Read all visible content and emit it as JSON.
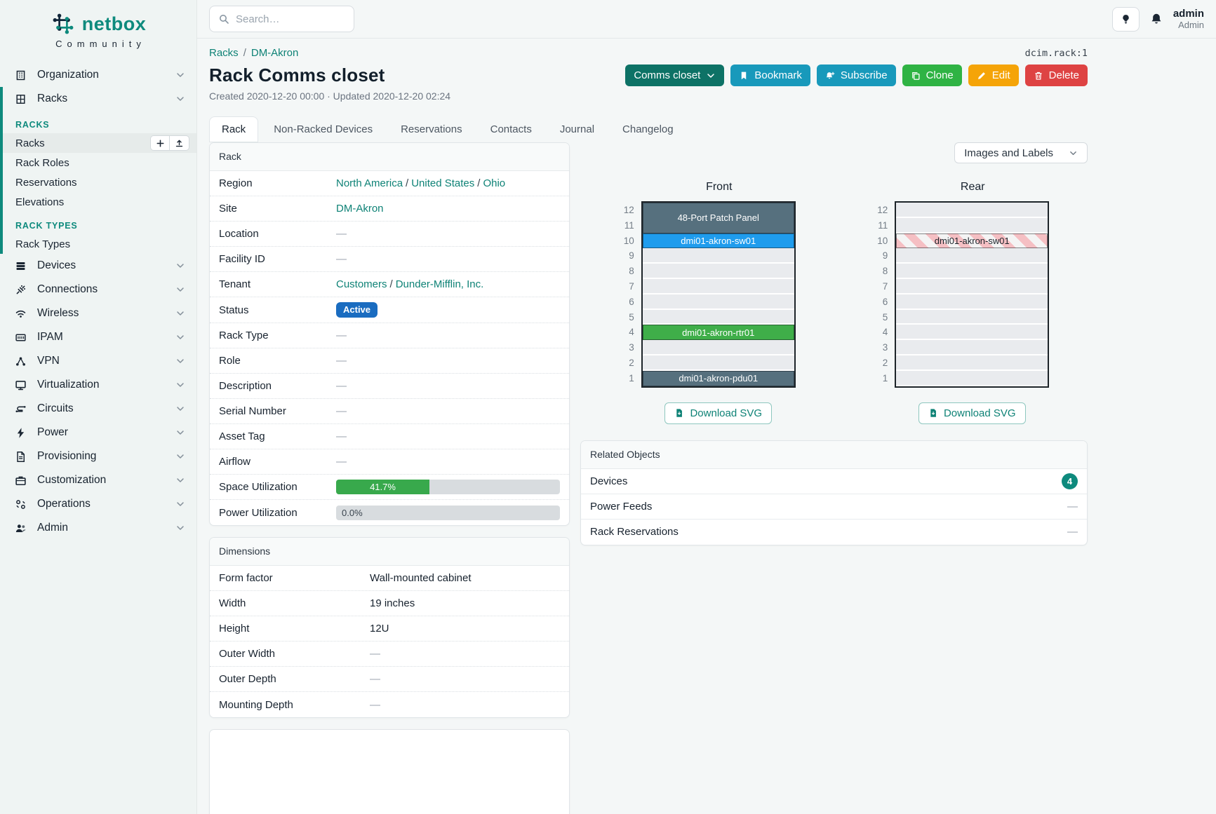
{
  "brand": {
    "name": "netbox",
    "tagline": "Community"
  },
  "topbar": {
    "search_placeholder": "Search…",
    "user_name": "admin",
    "user_role": "Admin"
  },
  "page": {
    "object_ref": "dcim.rack:1",
    "breadcrumb": [
      "Racks",
      "DM-Akron"
    ],
    "title": "Rack Comms closet",
    "meta": "Created 2020-12-20 00:00 · Updated 2020-12-20 02:24"
  },
  "actions": [
    {
      "label": "Comms closet",
      "icon": "chevron-down",
      "icon_after": true,
      "style": "teal-dark",
      "name": "rack-selector-button"
    },
    {
      "label": "Bookmark",
      "icon": "bookmark",
      "style": "cyan",
      "name": "bookmark-button"
    },
    {
      "label": "Subscribe",
      "icon": "bell-plus",
      "style": "cyan",
      "name": "subscribe-button"
    },
    {
      "label": "Clone",
      "icon": "copy",
      "style": "green",
      "name": "clone-button"
    },
    {
      "label": "Edit",
      "icon": "pencil",
      "style": "orange",
      "name": "edit-button"
    },
    {
      "label": "Delete",
      "icon": "trash",
      "style": "red",
      "name": "delete-button"
    }
  ],
  "tabs": [
    {
      "label": "Rack",
      "active": true
    },
    {
      "label": "Non-Racked Devices",
      "active": false
    },
    {
      "label": "Reservations",
      "active": false
    },
    {
      "label": "Contacts",
      "active": false
    },
    {
      "label": "Journal",
      "active": false
    },
    {
      "label": "Changelog",
      "active": false
    }
  ],
  "sidebar": {
    "top_items": [
      {
        "label": "Organization",
        "icon": "building"
      }
    ],
    "racks_group": {
      "label": "Racks",
      "icon": "rack",
      "submenu": [
        {
          "header": "RACKS"
        },
        {
          "label": "Racks",
          "active": true,
          "buttons": [
            {
              "icon": "plus",
              "name": "add-rack-button"
            },
            {
              "icon": "upload",
              "name": "import-racks-button"
            }
          ]
        },
        {
          "label": "Rack Roles"
        },
        {
          "label": "Reservations"
        },
        {
          "label": "Elevations"
        },
        {
          "header": "RACK TYPES"
        },
        {
          "label": "Rack Types"
        }
      ]
    },
    "bottom_items": [
      {
        "label": "Devices",
        "icon": "devices"
      },
      {
        "label": "Connections",
        "icon": "connections"
      },
      {
        "label": "Wireless",
        "icon": "wireless"
      },
      {
        "label": "IPAM",
        "icon": "ipam"
      },
      {
        "label": "VPN",
        "icon": "vpn"
      },
      {
        "label": "Virtualization",
        "icon": "virtualization"
      },
      {
        "label": "Circuits",
        "icon": "circuits"
      },
      {
        "label": "Power",
        "icon": "power"
      },
      {
        "label": "Provisioning",
        "icon": "provisioning"
      },
      {
        "label": "Customization",
        "icon": "customization"
      },
      {
        "label": "Operations",
        "icon": "operations"
      },
      {
        "label": "Admin",
        "icon": "admin"
      }
    ]
  },
  "rack_panel": {
    "title": "Rack",
    "rows": [
      {
        "label": "Region",
        "type": "links",
        "links": [
          "North America",
          "United States",
          "Ohio"
        ]
      },
      {
        "label": "Site",
        "type": "links",
        "links": [
          "DM-Akron"
        ]
      },
      {
        "label": "Location",
        "type": "dash",
        "value": "—"
      },
      {
        "label": "Facility ID",
        "type": "dash",
        "value": "—"
      },
      {
        "label": "Tenant",
        "type": "links",
        "links": [
          "Customers",
          "Dunder-Mifflin, Inc."
        ]
      },
      {
        "label": "Status",
        "type": "badge",
        "value": "Active"
      },
      {
        "label": "Rack Type",
        "type": "dash",
        "value": "—"
      },
      {
        "label": "Role",
        "type": "dash",
        "value": "—"
      },
      {
        "label": "Description",
        "type": "dash",
        "value": "—"
      },
      {
        "label": "Serial Number",
        "type": "dash",
        "value": "—"
      },
      {
        "label": "Asset Tag",
        "type": "dash",
        "value": "—"
      },
      {
        "label": "Airflow",
        "type": "dash",
        "value": "—"
      },
      {
        "label": "Space Utilization",
        "type": "progress",
        "percent": 41.7,
        "text": "41.7%"
      },
      {
        "label": "Power Utilization",
        "type": "progress",
        "percent": 0,
        "text": "0.0%"
      }
    ]
  },
  "dimensions_panel": {
    "title": "Dimensions",
    "rows": [
      {
        "label": "Form factor",
        "type": "text",
        "value": "Wall-mounted cabinet"
      },
      {
        "label": "Width",
        "type": "text",
        "value": "19 inches"
      },
      {
        "label": "Height",
        "type": "text",
        "value": "12U"
      },
      {
        "label": "Outer Width",
        "type": "dash",
        "value": "—"
      },
      {
        "label": "Outer Depth",
        "type": "dash",
        "value": "—"
      },
      {
        "label": "Mounting Depth",
        "type": "dash",
        "value": "—"
      }
    ]
  },
  "elevations": {
    "display_mode": "Images and Labels",
    "download_label": "Download SVG",
    "rack_height_u": 12,
    "views": [
      {
        "title": "Front",
        "slots": [
          {
            "units": 2,
            "label": "48-Port Patch Panel",
            "type": "slate"
          },
          {
            "units": 1,
            "label": "dmi01-akron-sw01",
            "type": "blue"
          },
          {
            "units": 1
          },
          {
            "units": 1
          },
          {
            "units": 1
          },
          {
            "units": 1
          },
          {
            "units": 1
          },
          {
            "units": 1,
            "label": "dmi01-akron-rtr01",
            "type": "green"
          },
          {
            "units": 1
          },
          {
            "units": 1
          },
          {
            "units": 1,
            "label": "dmi01-akron-pdu01",
            "type": "slate"
          }
        ]
      },
      {
        "title": "Rear",
        "slots": [
          {
            "units": 1
          },
          {
            "units": 1
          },
          {
            "units": 1,
            "label": "dmi01-akron-sw01",
            "type": "striped"
          },
          {
            "units": 1
          },
          {
            "units": 1
          },
          {
            "units": 1
          },
          {
            "units": 1
          },
          {
            "units": 1
          },
          {
            "units": 1
          },
          {
            "units": 1
          },
          {
            "units": 1
          },
          {
            "units": 1
          }
        ]
      }
    ]
  },
  "related_objects": {
    "title": "Related Objects",
    "rows": [
      {
        "label": "Devices",
        "badge": "4"
      },
      {
        "label": "Power Feeds",
        "value": "—"
      },
      {
        "label": "Rack Reservations",
        "value": "—"
      }
    ]
  },
  "colors": {
    "accent_teal": "#0e8a7d",
    "link_teal": "#0e8276",
    "status_active_blue": "#1a6cc0",
    "utilization_green": "#38a94c",
    "unit_slate": "#56707e",
    "unit_blue": "#1f9ced",
    "unit_green": "#3fae49",
    "rear_stripe_pink": "#f5bfc3",
    "button_cyan": "#1899bb",
    "button_green": "#2fb344",
    "button_orange": "#f5a408",
    "button_red": "#de4343",
    "button_teal_dark": "#0d7266"
  }
}
